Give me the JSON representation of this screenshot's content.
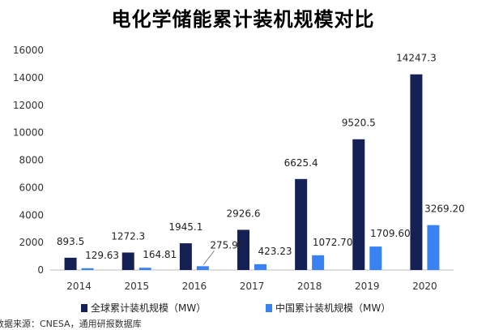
{
  "colors": {
    "global": "#152054",
    "china": "#3a82f4",
    "axis": "#bfbfbf"
  },
  "chart_data": {
    "type": "bar",
    "title": "电化学储能累计装机规模对比",
    "xlabel": "",
    "ylabel": "",
    "categories": [
      "2014",
      "2015",
      "2016",
      "2017",
      "2018",
      "2019",
      "2020"
    ],
    "ylim": [
      0,
      16000
    ],
    "yticks": [
      0,
      2000,
      4000,
      6000,
      8000,
      10000,
      12000,
      14000,
      16000
    ],
    "grid": false,
    "legend_position": "bottom",
    "series": [
      {
        "name": "全球累计装机规模（MW）",
        "values": [
          893.5,
          1272.3,
          1945.1,
          2926.6,
          6625.4,
          9520.5,
          14247.3
        ],
        "labels": [
          "893.5",
          "1272.3",
          "1945.1",
          "2926.6",
          "6625.4",
          "9520.5",
          "14247.3"
        ]
      },
      {
        "name": "中国累计装机规模（MW）",
        "values": [
          129.63,
          164.81,
          275.93,
          423.23,
          1072.7,
          1709.6,
          3269.2
        ],
        "labels": [
          "129.63",
          "164.81",
          "275.93",
          "423.23",
          "1072.70",
          "1709.60",
          "3269.20"
        ]
      }
    ]
  },
  "footer": {
    "source": "数据来源：CNESA，通用研报数据库"
  }
}
